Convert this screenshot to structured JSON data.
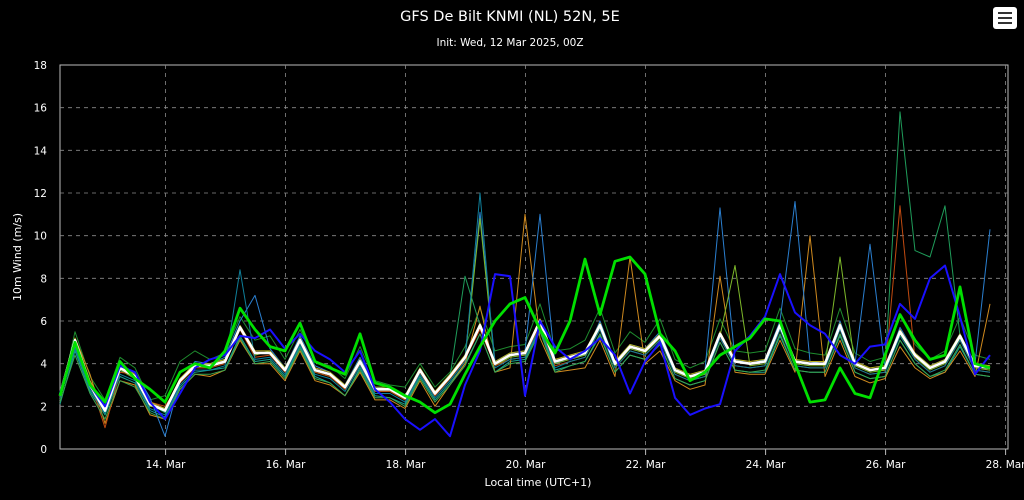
{
  "chart_data": {
    "type": "line",
    "title": "GFS De Bilt KNMI (NL) 52N, 5E",
    "subtitle": "Init: Wed, 12 Mar 2025, 00Z",
    "xlabel": "Local time (UTC+1)",
    "ylabel": "10m Wind (m/s)",
    "ylim": [
      0,
      18
    ],
    "yticks": [
      0,
      2,
      4,
      6,
      8,
      10,
      12,
      14,
      16,
      18
    ],
    "x_unit": "days since 12 Mar 2025 00:00 UTC (step 6h)",
    "xlim": [
      0.2,
      16.0
    ],
    "xticks": [
      {
        "label": "14. Mar",
        "x": 1.96
      },
      {
        "label": "16. Mar",
        "x": 3.96
      },
      {
        "label": "18. Mar",
        "x": 5.96
      },
      {
        "label": "20. Mar",
        "x": 7.96
      },
      {
        "label": "22. Mar",
        "x": 9.96
      },
      {
        "label": "24. Mar",
        "x": 11.96
      },
      {
        "label": "26. Mar",
        "x": 13.96
      },
      {
        "label": "28. Mar",
        "x": 15.96
      }
    ],
    "grid": true,
    "series_highlight": [
      {
        "name": "mean",
        "color": "#ffffff",
        "width": 2.6,
        "values": [
          2.5,
          5.1,
          3.0,
          1.8,
          3.8,
          3.4,
          2.1,
          1.8,
          3.2,
          3.9,
          3.9,
          4.1,
          5.7,
          4.5,
          4.5,
          3.7,
          5.1,
          3.7,
          3.5,
          2.9,
          4.1,
          2.8,
          2.8,
          2.4,
          3.7,
          2.6,
          3.4,
          4.3,
          5.8,
          4.0,
          4.4,
          4.5,
          6.0,
          4.1,
          4.3,
          4.5,
          5.8,
          4.0,
          4.8,
          4.6,
          5.3,
          3.7,
          3.4,
          3.6,
          5.4,
          4.1,
          4.0,
          4.1,
          5.8,
          4.1,
          4.0,
          4.0,
          5.8,
          4.0,
          3.7,
          3.8,
          5.5,
          4.4,
          3.8,
          4.1,
          5.3,
          3.9,
          3.8
        ]
      },
      {
        "name": "control",
        "color": "#1a10ff",
        "width": 2.0,
        "values": [
          2.6,
          5.0,
          3.0,
          2.0,
          3.9,
          3.6,
          2.2,
          1.4,
          2.6,
          3.8,
          4.2,
          4.4,
          5.3,
          5.2,
          5.6,
          4.7,
          5.4,
          4.6,
          4.2,
          3.6,
          4.6,
          2.8,
          2.2,
          1.4,
          0.9,
          1.4,
          0.6,
          3.0,
          4.6,
          8.2,
          8.1,
          2.5,
          6.0,
          4.8,
          4.2,
          4.6,
          5.2,
          4.4,
          2.6,
          4.1,
          5.0,
          2.4,
          1.6,
          1.9,
          2.1,
          4.6,
          5.3,
          6.2,
          8.2,
          6.4,
          5.8,
          5.4,
          4.4,
          4.0,
          4.8,
          4.9,
          6.8,
          6.1,
          8.0,
          8.6,
          6.2,
          3.5,
          4.4
        ]
      },
      {
        "name": "operational",
        "color": "#00e000",
        "width": 2.8,
        "values": [
          2.5,
          5.0,
          3.0,
          2.2,
          4.1,
          3.3,
          2.8,
          2.2,
          3.6,
          4.0,
          3.8,
          4.6,
          6.6,
          5.6,
          4.8,
          4.6,
          5.9,
          4.1,
          3.8,
          3.5,
          5.4,
          3.1,
          2.9,
          2.5,
          2.2,
          1.7,
          2.1,
          3.5,
          4.8,
          6.0,
          6.8,
          7.1,
          5.6,
          4.5,
          6.0,
          8.9,
          6.3,
          8.8,
          9.0,
          8.2,
          5.4,
          4.6,
          3.2,
          3.6,
          4.4,
          4.8,
          5.2,
          6.1,
          6.0,
          4.0,
          2.2,
          2.3,
          3.8,
          2.6,
          2.4,
          4.4,
          6.3,
          5.1,
          4.2,
          4.4,
          7.6,
          4.0,
          3.8
        ]
      }
    ],
    "series_members": [
      {
        "color": "#1e8c2e",
        "values": [
          2.3,
          5.5,
          3.4,
          2.3,
          4.3,
          3.8,
          2.3,
          2.5,
          4.1,
          4.6,
          4.2,
          4.5,
          6.2,
          5.1,
          5.3,
          4.2,
          5.6,
          4.1,
          3.9,
          3.3,
          4.8,
          3.2,
          3.0,
          2.9,
          4.0,
          2.9,
          3.6,
          4.8,
          6.6,
          4.6,
          4.8,
          4.9,
          6.8,
          4.6,
          4.7,
          5.1,
          6.6,
          4.5,
          5.5,
          5.0,
          6.1,
          4.2,
          3.8,
          4.1,
          6.1,
          4.6,
          4.5,
          4.6,
          6.6,
          4.7,
          4.5,
          4.4,
          6.6,
          4.5,
          4.1,
          4.3,
          6.3,
          4.9,
          4.2,
          4.6,
          6.2,
          4.4,
          4.2
        ]
      },
      {
        "color": "#17a090",
        "values": [
          2.1,
          4.6,
          2.7,
          1.6,
          3.4,
          3.1,
          1.8,
          1.5,
          2.9,
          3.6,
          3.7,
          3.8,
          5.3,
          4.1,
          4.2,
          3.4,
          4.8,
          3.4,
          3.1,
          2.5,
          3.8,
          2.5,
          2.4,
          2.1,
          3.4,
          2.3,
          3.1,
          4.0,
          5.4,
          3.6,
          4.1,
          4.2,
          5.6,
          3.7,
          3.9,
          4.1,
          5.3,
          3.6,
          4.4,
          4.2,
          4.9,
          3.3,
          3.0,
          3.2,
          5.0,
          3.7,
          3.6,
          3.6,
          5.3,
          3.7,
          3.6,
          3.6,
          5.3,
          3.6,
          3.3,
          3.4,
          5.1,
          4.0,
          3.4,
          3.6,
          4.8,
          3.5,
          3.4
        ]
      },
      {
        "color": "#d08a1e",
        "values": [
          2.4,
          5.2,
          3.5,
          1.2,
          3.2,
          3.0,
          1.6,
          1.4,
          2.8,
          3.5,
          3.4,
          3.7,
          5.1,
          4.0,
          4.0,
          3.2,
          4.6,
          3.2,
          3.0,
          2.5,
          3.6,
          2.3,
          2.3,
          1.9,
          3.2,
          2.0,
          3.0,
          4.0,
          6.7,
          3.6,
          3.8,
          11.0,
          5.2,
          3.6,
          3.7,
          3.8,
          5.1,
          3.4,
          9.0,
          4.0,
          4.6,
          3.2,
          2.8,
          3.0,
          8.1,
          3.6,
          3.5,
          3.5,
          5.1,
          3.6,
          10.0,
          3.4,
          5.1,
          3.4,
          3.1,
          3.3,
          4.8,
          3.8,
          3.3,
          3.6,
          4.6,
          3.4,
          6.8
        ]
      },
      {
        "color": "#2a7fd0",
        "values": [
          2.6,
          4.8,
          2.9,
          2.0,
          3.6,
          3.6,
          2.4,
          0.6,
          3.2,
          4.1,
          4.0,
          4.3,
          6.0,
          7.2,
          4.7,
          3.8,
          5.3,
          3.9,
          3.6,
          3.0,
          4.3,
          2.9,
          2.8,
          2.4,
          3.8,
          2.6,
          3.5,
          4.3,
          11.1,
          4.1,
          4.5,
          4.6,
          11.0,
          4.0,
          4.3,
          4.4,
          6.0,
          4.1,
          4.9,
          4.7,
          5.5,
          3.8,
          3.4,
          3.7,
          11.3,
          4.2,
          4.0,
          4.2,
          6.0,
          11.6,
          4.1,
          4.0,
          6.0,
          4.0,
          9.6,
          3.8,
          5.7,
          4.5,
          3.9,
          4.2,
          5.4,
          4.0,
          10.3
        ]
      },
      {
        "color": "#7db82a",
        "values": [
          2.5,
          4.9,
          3.1,
          1.9,
          3.7,
          3.3,
          2.0,
          1.9,
          3.3,
          4.0,
          4.0,
          4.2,
          5.6,
          4.4,
          4.6,
          3.8,
          5.0,
          3.6,
          3.4,
          2.8,
          4.0,
          2.7,
          2.7,
          2.3,
          3.6,
          2.5,
          3.3,
          4.2,
          10.8,
          3.9,
          4.3,
          4.4,
          5.9,
          4.0,
          4.2,
          4.4,
          5.7,
          3.9,
          4.7,
          4.5,
          5.2,
          3.6,
          3.3,
          3.5,
          5.3,
          8.6,
          3.9,
          4.0,
          5.7,
          4.0,
          3.9,
          3.9,
          9.0,
          3.9,
          3.6,
          3.7,
          5.4,
          4.3,
          3.7,
          4.0,
          5.2,
          3.8,
          3.7
        ]
      },
      {
        "color": "#c04a10",
        "values": [
          2.5,
          5.0,
          3.2,
          1.0,
          3.6,
          3.5,
          2.2,
          2.0,
          3.1,
          3.8,
          3.8,
          4.0,
          5.6,
          4.3,
          4.4,
          3.6,
          5.0,
          3.6,
          3.4,
          2.8,
          4.0,
          2.7,
          2.7,
          2.3,
          3.6,
          2.5,
          3.3,
          4.2,
          5.6,
          3.9,
          4.2,
          4.3,
          5.8,
          3.9,
          4.1,
          4.3,
          5.6,
          3.8,
          4.6,
          4.4,
          5.1,
          3.5,
          3.2,
          3.4,
          5.2,
          3.9,
          3.8,
          3.9,
          5.6,
          3.9,
          3.8,
          3.8,
          5.6,
          3.8,
          3.5,
          3.6,
          11.4,
          4.2,
          3.6,
          3.9,
          5.1,
          3.7,
          3.6
        ]
      },
      {
        "color": "#1f9c5a",
        "values": [
          2.6,
          5.1,
          3.0,
          1.7,
          3.8,
          3.4,
          2.1,
          1.7,
          3.2,
          3.9,
          3.9,
          4.1,
          5.7,
          4.5,
          4.5,
          3.7,
          5.1,
          3.7,
          3.5,
          2.9,
          4.1,
          2.8,
          2.8,
          2.4,
          3.7,
          2.6,
          3.4,
          8.1,
          5.8,
          4.0,
          4.4,
          4.5,
          6.0,
          4.1,
          4.3,
          4.5,
          5.8,
          4.0,
          4.8,
          4.6,
          5.3,
          3.7,
          3.4,
          3.6,
          5.4,
          4.1,
          4.0,
          4.1,
          5.8,
          4.1,
          4.0,
          4.0,
          5.8,
          4.0,
          3.7,
          3.8,
          15.8,
          9.3,
          9.0,
          11.4,
          5.3,
          3.9,
          3.8
        ]
      },
      {
        "color": "#0f7f9a",
        "values": [
          2.4,
          4.7,
          2.8,
          1.7,
          3.5,
          3.2,
          1.9,
          1.6,
          3.0,
          3.7,
          3.7,
          3.9,
          8.4,
          4.2,
          4.3,
          3.5,
          4.9,
          3.5,
          3.3,
          2.7,
          3.9,
          2.6,
          2.6,
          2.2,
          3.5,
          2.4,
          3.2,
          4.1,
          12.0,
          3.8,
          4.2,
          4.3,
          5.7,
          3.8,
          4.1,
          4.3,
          5.6,
          3.8,
          4.6,
          4.4,
          5.1,
          3.5,
          3.2,
          3.4,
          5.2,
          3.9,
          3.8,
          3.9,
          5.6,
          3.9,
          3.8,
          3.8,
          5.6,
          3.8,
          3.5,
          3.6,
          5.3,
          4.2,
          3.6,
          3.9,
          5.1,
          3.7,
          3.6
        ]
      },
      {
        "color": "#b8b020",
        "values": [
          2.7,
          5.2,
          3.2,
          2.0,
          3.9,
          3.5,
          2.2,
          1.9,
          3.3,
          4.0,
          4.0,
          4.2,
          5.8,
          4.6,
          4.6,
          3.8,
          5.2,
          3.8,
          3.6,
          3.0,
          4.2,
          2.9,
          2.9,
          2.5,
          3.8,
          2.7,
          3.5,
          4.4,
          5.9,
          4.1,
          4.5,
          4.6,
          6.1,
          4.2,
          4.4,
          4.6,
          5.9,
          4.1,
          4.9,
          4.7,
          5.4,
          3.8,
          3.5,
          3.7,
          5.5,
          4.2,
          4.1,
          4.2,
          5.9,
          4.2,
          4.1,
          4.1,
          5.9,
          4.1,
          3.8,
          3.9,
          5.6,
          4.5,
          3.9,
          4.2,
          5.4,
          4.0,
          3.9
        ]
      },
      {
        "color": "#3aa650",
        "values": [
          2.2,
          4.4,
          2.6,
          1.4,
          3.2,
          2.9,
          1.7,
          1.4,
          2.8,
          3.5,
          3.5,
          3.7,
          5.2,
          4.0,
          4.1,
          3.3,
          4.7,
          3.3,
          3.1,
          2.5,
          3.7,
          2.4,
          2.4,
          2.0,
          3.3,
          2.2,
          3.0,
          3.9,
          5.4,
          3.6,
          4.0,
          4.1,
          5.5,
          3.6,
          3.9,
          4.1,
          5.4,
          3.6,
          4.4,
          4.2,
          4.9,
          3.3,
          3.0,
          3.2,
          5.0,
          3.7,
          3.6,
          3.7,
          5.4,
          3.7,
          3.6,
          3.6,
          5.4,
          3.6,
          3.3,
          3.4,
          5.1,
          4.0,
          3.4,
          3.7,
          4.9,
          3.5,
          3.4
        ]
      }
    ]
  },
  "menu": {
    "icon": "hamburger-menu-icon"
  }
}
